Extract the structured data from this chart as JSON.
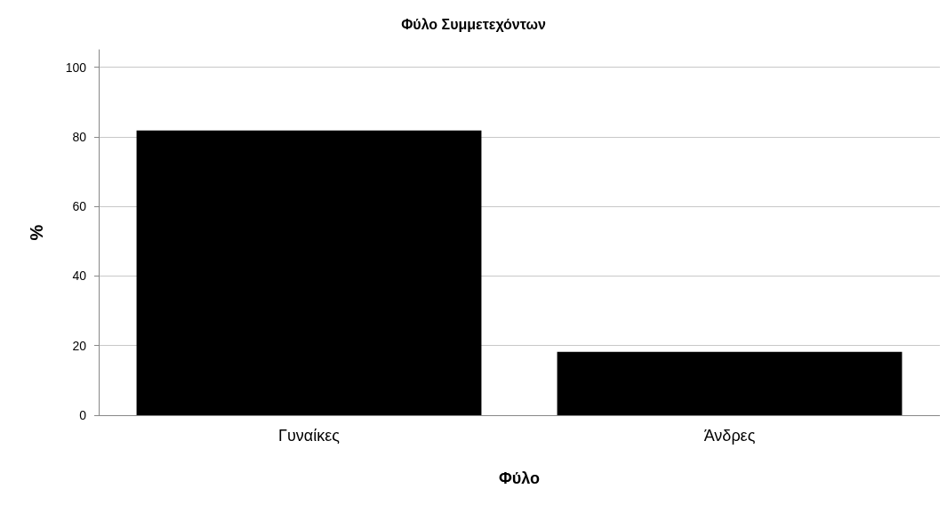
{
  "chart_data": {
    "type": "bar",
    "title": "Φύλο Συμμετεχόντων",
    "xlabel": "Φύλο",
    "ylabel": "%",
    "categories": [
      "Γυναίκες",
      "Άνδρες"
    ],
    "values": [
      81.8,
      18.2
    ],
    "color": "#000000",
    "ylim": [
      0,
      105
    ],
    "yticks": [
      0,
      20,
      40,
      60,
      80,
      100
    ],
    "grid": "y"
  }
}
